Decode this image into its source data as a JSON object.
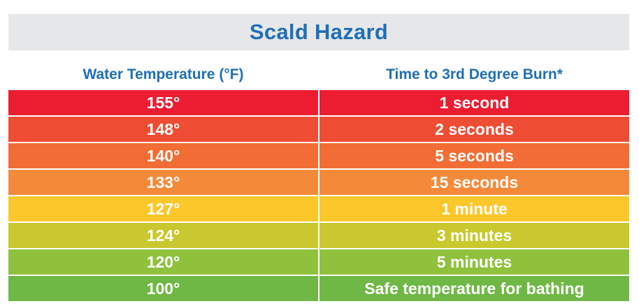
{
  "chart_data": {
    "type": "table",
    "title": "Scald Hazard",
    "columns": [
      "Water Temperature (°F)",
      "Time to 3rd Degree Burn*"
    ],
    "rows": [
      {
        "temperature": "155°",
        "time": "1 second",
        "color": "#ec1c31"
      },
      {
        "temperature": "148°",
        "time": "2 seconds",
        "color": "#ef4c34"
      },
      {
        "temperature": "140°",
        "time": "5 seconds",
        "color": "#f26d35"
      },
      {
        "temperature": "133°",
        "time": "15 seconds",
        "color": "#f48a39"
      },
      {
        "temperature": "127°",
        "time": "1 minute",
        "color": "#fcc72b"
      },
      {
        "temperature": "124°",
        "time": "3 minutes",
        "color": "#c9c82e"
      },
      {
        "temperature": "120°",
        "time": "5 minutes",
        "color": "#8fc13d"
      },
      {
        "temperature": "100°",
        "time": "Safe temperature for bathing",
        "color": "#6fb845"
      }
    ]
  },
  "colors": {
    "title_text": "#1f6fb7",
    "title_background": "#e6e7e8",
    "header_text": "#1f6fb7",
    "cell_text": "#ffffff"
  }
}
